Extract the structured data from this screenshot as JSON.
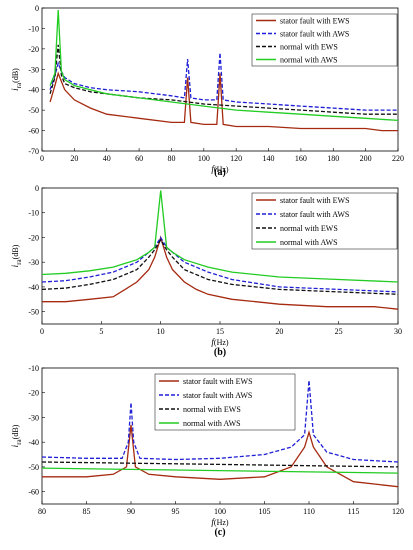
{
  "colors": {
    "stator_ews": "#a52a10",
    "stator_aws": "#1f1fd6",
    "normal_ews": "#111111",
    "normal_aws": "#22cc22"
  },
  "chart_data": [
    {
      "type": "line",
      "panel_label": "(a)",
      "xlabel": "f(Hz)",
      "ylabel": "i_ra(dB)",
      "ylabel_main": "i",
      "ylabel_sub": "ra",
      "ylabel_unit": "(dB)",
      "xlabel_main": "f",
      "xlabel_unit": "(Hz)",
      "xlim": [
        0,
        220
      ],
      "ylim": [
        -70,
        0
      ],
      "xticks": [
        0,
        20,
        40,
        60,
        80,
        100,
        120,
        140,
        160,
        180,
        200,
        220
      ],
      "yticks": [
        0,
        -10,
        -20,
        -30,
        -40,
        -50,
        -60,
        -70
      ],
      "legend_position": "top-right",
      "series": [
        {
          "name": "stator fault with EWS",
          "style": "solid",
          "color": "#a52a10",
          "x": [
            5,
            8,
            10,
            12,
            14,
            20,
            30,
            40,
            60,
            80,
            88,
            90,
            92,
            100,
            108,
            110,
            112,
            120,
            140,
            160,
            180,
            190,
            200,
            210,
            220
          ],
          "y": [
            -46,
            -38,
            -32,
            -36,
            -40,
            -45,
            -49,
            -52,
            -54,
            -56,
            -56,
            -34,
            -56,
            -57,
            -57,
            -32,
            -57,
            -58,
            -58,
            -59,
            -59,
            -59,
            -59,
            -60,
            -60
          ]
        },
        {
          "name": "stator fault with AWS",
          "style": "dashed",
          "color": "#1f1fd6",
          "x": [
            5,
            8,
            10,
            12,
            14,
            20,
            30,
            40,
            60,
            80,
            88,
            90,
            92,
            100,
            108,
            110,
            112,
            120,
            140,
            160,
            180,
            200,
            220
          ],
          "y": [
            -40,
            -33,
            -27,
            -31,
            -34,
            -37,
            -39,
            -40,
            -41,
            -43,
            -44,
            -25,
            -44,
            -45,
            -45,
            -22,
            -45,
            -46,
            -47,
            -48,
            -49,
            -50,
            -50
          ]
        },
        {
          "name": "normal with EWS",
          "style": "dashed",
          "color": "#111111",
          "x": [
            5,
            8,
            10,
            12,
            14,
            20,
            30,
            40,
            60,
            80,
            100,
            120,
            140,
            160,
            180,
            200,
            220
          ],
          "y": [
            -42,
            -34,
            -18,
            -33,
            -37,
            -39,
            -41,
            -42,
            -44,
            -45,
            -47,
            -48,
            -49,
            -50,
            -51,
            -52,
            -52
          ]
        },
        {
          "name": "normal with AWS",
          "style": "solid",
          "color": "#22cc22",
          "x": [
            5,
            8,
            10,
            12,
            14,
            20,
            30,
            40,
            60,
            80,
            100,
            120,
            140,
            160,
            180,
            200,
            220
          ],
          "y": [
            -38,
            -32,
            -1,
            -31,
            -35,
            -38,
            -40,
            -42,
            -44,
            -46,
            -48,
            -50,
            -51,
            -52,
            -53,
            -54,
            -55
          ]
        }
      ]
    },
    {
      "type": "line",
      "panel_label": "(b)",
      "xlabel": "f(Hz)",
      "ylabel": "i_ra(dB)",
      "ylabel_main": "i",
      "ylabel_sub": "ra",
      "ylabel_unit": "(dB)",
      "xlabel_main": "f",
      "xlabel_unit": "(Hz)",
      "xlim": [
        0,
        30
      ],
      "ylim": [
        -55,
        0
      ],
      "xticks": [
        0,
        5,
        10,
        15,
        20,
        25,
        30
      ],
      "yticks": [
        0,
        -10,
        -20,
        -30,
        -40,
        -50
      ],
      "legend_position": "top-right",
      "series": [
        {
          "name": "stator fault with EWS",
          "style": "solid",
          "color": "#a52a10",
          "x": [
            0,
            2,
            4,
            6,
            7,
            8,
            9,
            9.5,
            10,
            10.5,
            11,
            12,
            13,
            14,
            16,
            18,
            20,
            24,
            28,
            30
          ],
          "y": [
            -46,
            -46,
            -45,
            -44,
            -41,
            -38,
            -33,
            -28,
            -20,
            -28,
            -33,
            -38,
            -41,
            -43,
            -45,
            -46,
            -47,
            -48,
            -48,
            -49
          ]
        },
        {
          "name": "stator fault with AWS",
          "style": "dashed",
          "color": "#1f1fd6",
          "x": [
            0,
            2,
            4,
            6,
            8,
            9,
            9.5,
            10,
            10.5,
            11,
            12,
            14,
            16,
            20,
            25,
            30
          ],
          "y": [
            -38,
            -37.5,
            -36,
            -34,
            -30,
            -26,
            -24,
            -20,
            -24,
            -26,
            -30,
            -34,
            -37,
            -40,
            -41,
            -42
          ]
        },
        {
          "name": "normal with EWS",
          "style": "dashed",
          "color": "#111111",
          "x": [
            0,
            2,
            4,
            6,
            8,
            9,
            9.5,
            10,
            10.5,
            11,
            12,
            14,
            16,
            20,
            25,
            30
          ],
          "y": [
            -41,
            -40.5,
            -39,
            -37,
            -33,
            -28,
            -25,
            -21,
            -25,
            -28,
            -33,
            -37,
            -39,
            -41,
            -42,
            -43
          ]
        },
        {
          "name": "normal with AWS",
          "style": "solid",
          "color": "#22cc22",
          "x": [
            0,
            2,
            4,
            6,
            8,
            9,
            9.5,
            10,
            10.5,
            11,
            12,
            14,
            16,
            20,
            25,
            30
          ],
          "y": [
            -35,
            -34.5,
            -33.5,
            -32,
            -29,
            -26,
            -24,
            -1,
            -24,
            -26,
            -29,
            -32,
            -34,
            -36,
            -37,
            -38
          ]
        }
      ]
    },
    {
      "type": "line",
      "panel_label": "(c)",
      "xlabel": "f(Hz)",
      "ylabel": "i_ra(dB)",
      "ylabel_main": "i",
      "ylabel_sub": "ra",
      "ylabel_unit": "(dB)",
      "xlabel_main": "f",
      "xlabel_unit": "(Hz)",
      "xlim": [
        80,
        120
      ],
      "ylim": [
        -65,
        -10
      ],
      "xticks": [
        80,
        85,
        90,
        95,
        100,
        105,
        110,
        115,
        120
      ],
      "yticks": [
        -10,
        -20,
        -30,
        -40,
        -50,
        -60
      ],
      "legend_position": "top-center",
      "series": [
        {
          "name": "stator fault with EWS",
          "style": "solid",
          "color": "#a52a10",
          "x": [
            80,
            85,
            88,
            89.5,
            90,
            90.5,
            92,
            95,
            100,
            105,
            108,
            109.5,
            110,
            110.5,
            112,
            115,
            120
          ],
          "y": [
            -54,
            -54,
            -53,
            -50,
            -33,
            -50,
            -53,
            -54,
            -55,
            -54,
            -50,
            -42,
            -36,
            -42,
            -50,
            -56,
            -58
          ]
        },
        {
          "name": "stator fault with AWS",
          "style": "dashed",
          "color": "#1f1fd6",
          "x": [
            80,
            85,
            89,
            89.7,
            90,
            90.3,
            91,
            95,
            100,
            105,
            108,
            109.5,
            110,
            110.5,
            112,
            115,
            120
          ],
          "y": [
            -46,
            -46.5,
            -46.5,
            -40,
            -24,
            -40,
            -46.5,
            -47,
            -46.5,
            -45,
            -42,
            -37,
            -15,
            -37,
            -44,
            -47,
            -48
          ]
        },
        {
          "name": "normal with EWS",
          "style": "dashed",
          "color": "#111111",
          "x": [
            80,
            90,
            100,
            110,
            120
          ],
          "y": [
            -48,
            -48.5,
            -49,
            -49.5,
            -50
          ]
        },
        {
          "name": "normal with AWS",
          "style": "solid",
          "color": "#22cc22",
          "x": [
            80,
            90,
            100,
            110,
            120
          ],
          "y": [
            -50.5,
            -51,
            -51.5,
            -52,
            -52.5
          ]
        }
      ]
    }
  ]
}
